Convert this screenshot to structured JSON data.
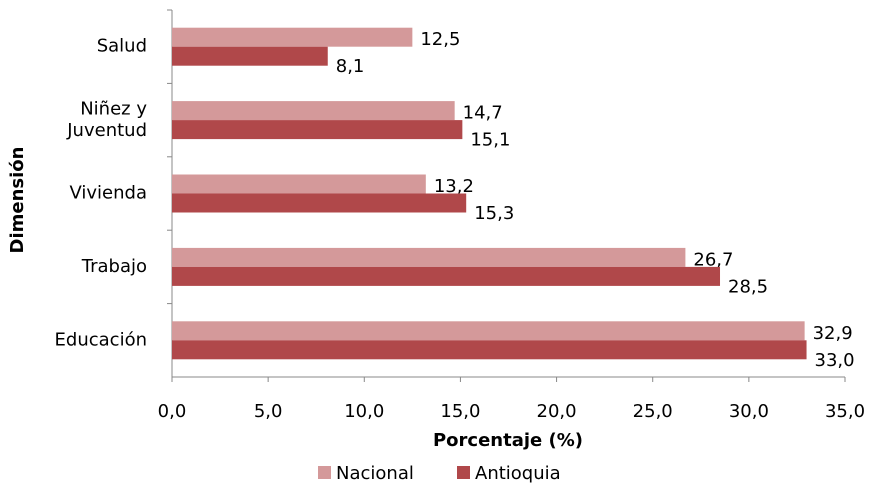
{
  "chart_data": {
    "type": "hbar",
    "categories": [
      "Salud",
      "Niñez y\nJuventud",
      "Vivienda",
      "Trabajo",
      "Educación"
    ],
    "series": [
      {
        "name": "Nacional",
        "color": "#d4999a",
        "values": [
          12.5,
          14.7,
          13.2,
          26.7,
          32.9
        ],
        "value_labels": [
          "12,5",
          "14,7",
          "13,2",
          "26,7",
          "32,9"
        ]
      },
      {
        "name": "Antioquia",
        "color": "#b0484a",
        "values": [
          8.1,
          15.1,
          15.3,
          28.5,
          33.0
        ],
        "value_labels": [
          "8,1",
          "15,1",
          "15,3",
          "28,5",
          "33,0"
        ]
      }
    ],
    "xlabel": "Porcentaje (%)",
    "ylabel": "Dimensión",
    "xlim": [
      0,
      35
    ],
    "xticks": [
      {
        "value": 0,
        "label": "0,0"
      },
      {
        "value": 5,
        "label": "5,0"
      },
      {
        "value": 10,
        "label": "10,0"
      },
      {
        "value": 15,
        "label": "15,0"
      },
      {
        "value": 20,
        "label": "20,0"
      },
      {
        "value": 25,
        "label": "25,0"
      },
      {
        "value": 30,
        "label": "30,0"
      },
      {
        "value": 35,
        "label": "35,0"
      }
    ],
    "legend": "bottom"
  }
}
